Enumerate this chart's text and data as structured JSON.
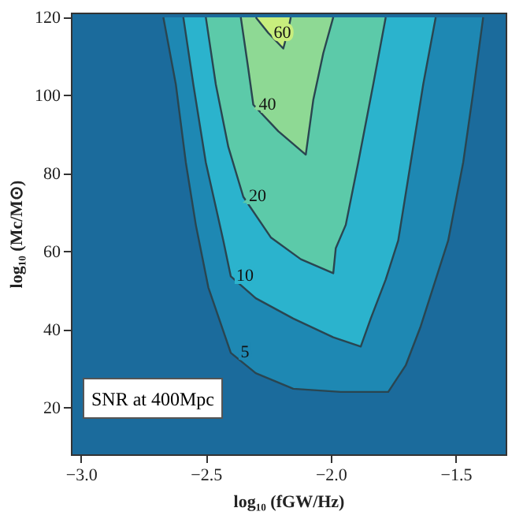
{
  "chart_data": {
    "type": "area",
    "xlabel": "log₁₀ (fGW/Hz)",
    "ylabel": "log₁₀ (Mc/M⊙)",
    "xlim": [
      -3.04,
      -1.3
    ],
    "ylim": [
      8,
      121.2
    ],
    "xticks": [
      {
        "value": -3.0,
        "label": "−3.0"
      },
      {
        "value": -2.5,
        "label": "−2.5"
      },
      {
        "value": -2.0,
        "label": "−2.0"
      },
      {
        "value": -1.5,
        "label": "−1.5"
      }
    ],
    "yticks": [
      20,
      40,
      60,
      80,
      100,
      120
    ],
    "grid": false,
    "annotations": [
      "SNR at 400Mpc"
    ],
    "series": [
      {
        "name": "5",
        "color": "#1e88b3",
        "x": [
          -2.67,
          -2.62,
          -2.58,
          -2.54,
          -2.49,
          -2.4,
          -2.3,
          -2.15,
          -1.96,
          -1.77,
          -1.7,
          -1.64,
          -1.58,
          -1.53,
          -1.47,
          -1.43,
          -1.39
        ],
        "values": [
          120,
          102.8,
          82.8,
          66.8,
          50.8,
          34,
          28.8,
          24.8,
          24,
          24,
          30.8,
          40.8,
          52.8,
          62.8,
          82.8,
          100.8,
          120
        ]
      },
      {
        "name": "10",
        "color": "#2bb3cd",
        "x": [
          -2.59,
          -2.55,
          -2.5,
          -2.43,
          -2.4,
          -2.3,
          -2.15,
          -1.99,
          -1.88,
          -1.84,
          -1.78,
          -1.73,
          -1.68,
          -1.63,
          -1.58
        ],
        "values": [
          120,
          102.8,
          82.8,
          62.8,
          53.6,
          48,
          42.8,
          38,
          35.6,
          42.8,
          52.8,
          62.8,
          82.8,
          102.8,
          120
        ]
      },
      {
        "name": "20",
        "color": "#5ccaa9",
        "x": [
          -2.5,
          -2.46,
          -2.41,
          -2.35,
          -2.24,
          -2.12,
          -1.99,
          -1.98,
          -1.94,
          -1.89,
          -1.83,
          -1.78
        ],
        "values": [
          120,
          102.8,
          86.8,
          74,
          63.6,
          58,
          54.4,
          60.8,
          66.8,
          82.8,
          102.8,
          120
        ]
      },
      {
        "name": "40",
        "color": "#8ed994",
        "x": [
          -2.36,
          -2.33,
          -2.31,
          -2.21,
          -2.1,
          -2.07,
          -2.03,
          -1.99
        ],
        "values": [
          120,
          106.8,
          97.6,
          90.8,
          84.8,
          98.8,
          110.8,
          120
        ]
      },
      {
        "name": "60",
        "color": "#c8ee7d",
        "x": [
          -2.3,
          -2.25,
          -2.19,
          -2.17,
          -2.16
        ],
        "values": [
          120,
          116,
          112,
          116.8,
          120
        ]
      }
    ]
  }
}
